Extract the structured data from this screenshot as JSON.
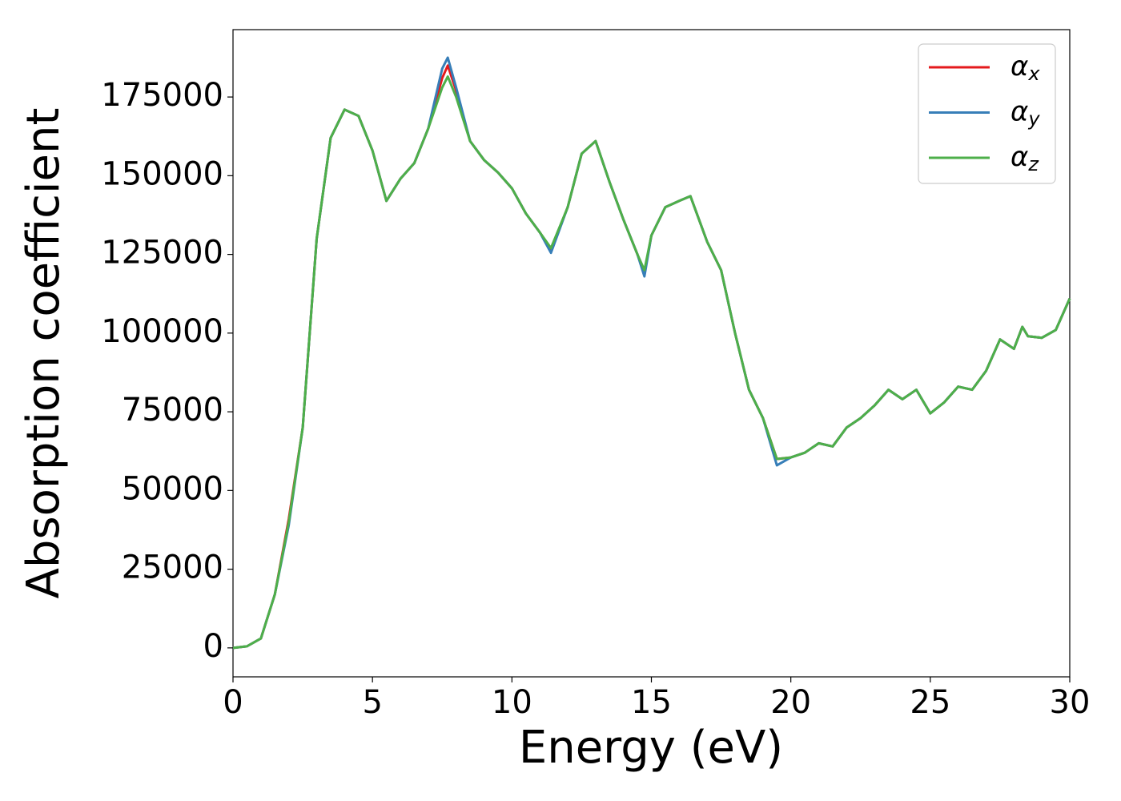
{
  "chart_data": {
    "type": "line",
    "xlabel": "Energy (eV)",
    "ylabel": "Absorption coefficient",
    "x": [
      0,
      0.5,
      1,
      1.5,
      2,
      2.5,
      3,
      3.5,
      4,
      4.5,
      5,
      5.5,
      6,
      6.5,
      7,
      7.5,
      7.7,
      8,
      8.5,
      9,
      9.5,
      10,
      10.5,
      11,
      11.4,
      12,
      12.5,
      13,
      13.5,
      14,
      14.5,
      14.75,
      15,
      15.5,
      16,
      16.4,
      17,
      17.5,
      18,
      18.5,
      19,
      19.5,
      20,
      20.5,
      21,
      21.5,
      22,
      22.5,
      23,
      23.5,
      24,
      24.5,
      25,
      25.5,
      26,
      26.5,
      27,
      27.5,
      28,
      28.3,
      28.5,
      29,
      29.5,
      30
    ],
    "series": [
      {
        "name": "αx",
        "color": "#e41a1c",
        "values": [
          0,
          500,
          3000,
          17000,
          41000,
          70000,
          130000,
          162000,
          171000,
          169000,
          158000,
          142000,
          149000,
          154000,
          165000,
          181000,
          185000,
          177000,
          161000,
          155000,
          151000,
          146000,
          138000,
          132000,
          126500,
          140000,
          157000,
          161000,
          148000,
          136000,
          125000,
          119000,
          131000,
          140000,
          142000,
          143500,
          129000,
          120000,
          100000,
          82000,
          73000,
          60000,
          60500,
          62000,
          65000,
          64000,
          70000,
          73000,
          77000,
          82000,
          79000,
          82000,
          74500,
          78000,
          83000,
          82000,
          88000,
          98000,
          95000,
          102000,
          99000,
          98500,
          101000,
          111000
        ]
      },
      {
        "name": "αy",
        "color": "#377eb8",
        "values": [
          0,
          500,
          3000,
          17000,
          39000,
          70000,
          130000,
          162000,
          171000,
          169000,
          158000,
          142000,
          149000,
          154000,
          165000,
          184000,
          187500,
          178000,
          161000,
          155000,
          151000,
          146000,
          138000,
          132000,
          125500,
          140000,
          157000,
          161000,
          148000,
          136000,
          125000,
          118000,
          131000,
          140000,
          142000,
          143500,
          129000,
          120000,
          100000,
          82000,
          73000,
          58000,
          60500,
          62000,
          65000,
          64000,
          70000,
          73000,
          77000,
          82000,
          79000,
          82000,
          74500,
          78000,
          83000,
          82000,
          88000,
          98000,
          95000,
          102000,
          99000,
          98500,
          101000,
          111000
        ]
      },
      {
        "name": "αz",
        "color": "#4daf4a",
        "values": [
          0,
          500,
          3000,
          17000,
          40000,
          70000,
          130000,
          162000,
          171000,
          169000,
          158000,
          142000,
          149000,
          154000,
          165000,
          178000,
          181500,
          175000,
          161000,
          155000,
          151000,
          146000,
          138000,
          132000,
          127000,
          140000,
          157000,
          161000,
          148000,
          136000,
          125000,
          120000,
          131000,
          140000,
          142000,
          143500,
          129000,
          120000,
          100000,
          82000,
          73000,
          60000,
          60500,
          62000,
          65000,
          64000,
          70000,
          73000,
          77000,
          82000,
          79000,
          82000,
          74500,
          78000,
          83000,
          82000,
          88000,
          98000,
          95000,
          102000,
          99000,
          98500,
          101000,
          111000
        ]
      }
    ],
    "xlim": [
      0,
      30
    ],
    "xticks": [
      0,
      5,
      10,
      15,
      20,
      25,
      30
    ],
    "ylim": [
      -9200,
      196400
    ],
    "yticks": [
      0,
      25000,
      50000,
      75000,
      100000,
      125000,
      150000,
      175000
    ],
    "grid": false,
    "legend": "upper right"
  }
}
